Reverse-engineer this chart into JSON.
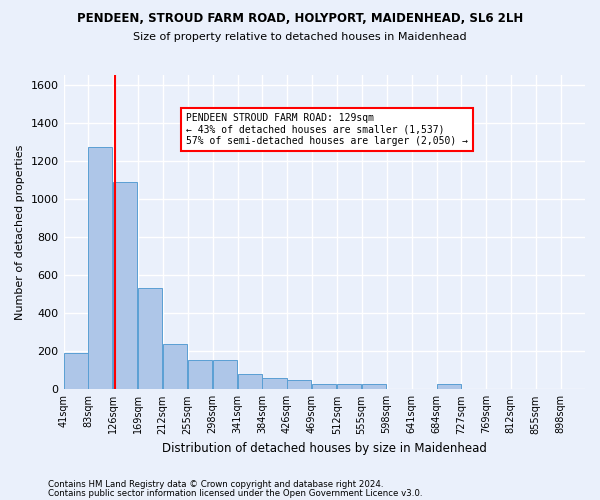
{
  "title": "PENDEEN, STROUD FARM ROAD, HOLYPORT, MAIDENHEAD, SL6 2LH",
  "subtitle": "Size of property relative to detached houses in Maidenhead",
  "xlabel": "Distribution of detached houses by size in Maidenhead",
  "ylabel": "Number of detached properties",
  "bin_edges": [
    41,
    83,
    126,
    169,
    212,
    255,
    298,
    341,
    384,
    426,
    469,
    512,
    555,
    598,
    641,
    684,
    727,
    769,
    812,
    855,
    898
  ],
  "bar_heights": [
    190,
    1270,
    1090,
    530,
    240,
    155,
    155,
    80,
    60,
    50,
    30,
    30,
    30,
    0,
    0,
    30,
    0,
    0,
    0,
    0
  ],
  "bar_color": "#aec6e8",
  "bar_edge_color": "#5a9fd4",
  "property_line_x": 129,
  "property_line_color": "red",
  "annotation_text": "PENDEEN STROUD FARM ROAD: 129sqm\n← 43% of detached houses are smaller (1,537)\n57% of semi-detached houses are larger (2,050) →",
  "annotation_box_color": "white",
  "annotation_box_edge_color": "red",
  "ylim": [
    0,
    1650
  ],
  "yticks": [
    0,
    200,
    400,
    600,
    800,
    1000,
    1200,
    1400,
    1600
  ],
  "footnote1": "Contains HM Land Registry data © Crown copyright and database right 2024.",
  "footnote2": "Contains public sector information licensed under the Open Government Licence v3.0.",
  "bg_color": "#eaf0fb",
  "grid_color": "white"
}
